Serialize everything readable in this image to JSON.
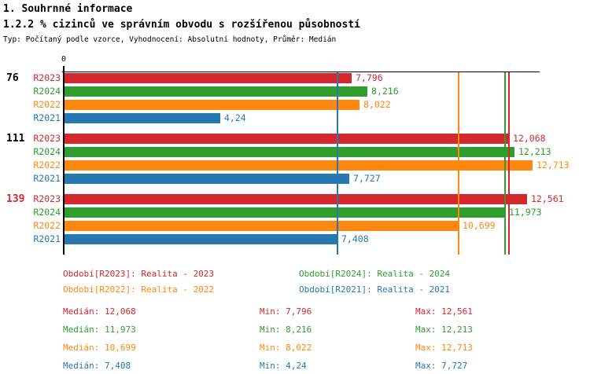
{
  "header": {
    "title": "1. Souhrnné informace",
    "subtitle": "1.2.2 % cizinců ve správním obvodu s rozšířenou působností",
    "meta": "Typ: Počítaný podle vzorce, Vyhodnocení: Absolutní hodnoty, Průměr: Medián"
  },
  "chart_data": {
    "type": "bar",
    "orientation": "horizontal",
    "value_axis": {
      "origin_label": "0",
      "min": 0,
      "max_visible": 12.9,
      "position": "top"
    },
    "series": [
      {
        "id": "R2023",
        "name": "Realita - 2023",
        "color": "#d2282e",
        "median": 12.068,
        "min": 7.796,
        "max": 12.561
      },
      {
        "id": "R2024",
        "name": "Realita - 2024",
        "color": "#2f9e2f",
        "median": 11.973,
        "min": 8.216,
        "max": 12.213
      },
      {
        "id": "R2022",
        "name": "Realita - 2022",
        "color": "#fd870f",
        "median": 10.699,
        "min": 8.022,
        "max": 12.713
      },
      {
        "id": "R2021",
        "name": "Realita - 2021",
        "color": "#2777b1",
        "median": 7.408,
        "min": 4.24,
        "max": 7.727
      }
    ],
    "groups": [
      {
        "label": "76",
        "label_color": "#000000",
        "bars": [
          {
            "series": "R2023",
            "value": 7.796,
            "display": "7,796"
          },
          {
            "series": "R2024",
            "value": 8.216,
            "display": "8,216"
          },
          {
            "series": "R2022",
            "value": 8.022,
            "display": "8,022"
          },
          {
            "series": "R2021",
            "value": 4.24,
            "display": "4,24"
          }
        ]
      },
      {
        "label": "111",
        "label_color": "#000000",
        "bars": [
          {
            "series": "R2023",
            "value": 12.068,
            "display": "12,068"
          },
          {
            "series": "R2024",
            "value": 12.213,
            "display": "12,213"
          },
          {
            "series": "R2022",
            "value": 12.713,
            "display": "12,713"
          },
          {
            "series": "R2021",
            "value": 7.727,
            "display": "7,727"
          }
        ]
      },
      {
        "label": "139",
        "label_color": "#d2282e",
        "bars": [
          {
            "series": "R2023",
            "value": 12.561,
            "display": "12,561"
          },
          {
            "series": "R2024",
            "value": 11.973,
            "display": "11,973"
          },
          {
            "series": "R2022",
            "value": 10.699,
            "display": "10,699"
          },
          {
            "series": "R2021",
            "value": 7.408,
            "display": "7,408"
          }
        ]
      }
    ],
    "median_lines": [
      {
        "series": "R2023",
        "value": 12.068
      },
      {
        "series": "R2024",
        "value": 11.973
      },
      {
        "series": "R2022",
        "value": 10.699
      },
      {
        "series": "R2021",
        "value": 7.408
      }
    ]
  },
  "legend": {
    "items": [
      {
        "series": "R2023",
        "text": "Období[R2023]: Realita - 2023"
      },
      {
        "series": "R2024",
        "text": "Období[R2024]: Realita - 2024"
      },
      {
        "series": "R2022",
        "text": "Období[R2022]: Realita - 2022"
      },
      {
        "series": "R2021",
        "text": "Období[R2021]: Realita - 2021"
      }
    ]
  },
  "stats": {
    "rows": [
      {
        "series": "R2023",
        "cells": [
          "Medián: 12,068",
          "Min: 7,796",
          "Max: 12,561"
        ]
      },
      {
        "series": "R2024",
        "cells": [
          "Medián: 11,973",
          "Min: 8,216",
          "Max: 12,213"
        ]
      },
      {
        "series": "R2022",
        "cells": [
          "Medián: 10,699",
          "Min: 8,022",
          "Max: 12,713"
        ]
      },
      {
        "series": "R2021",
        "cells": [
          "Medián: 7,408",
          "Min: 4,24",
          "Max: 7,727"
        ]
      }
    ]
  }
}
